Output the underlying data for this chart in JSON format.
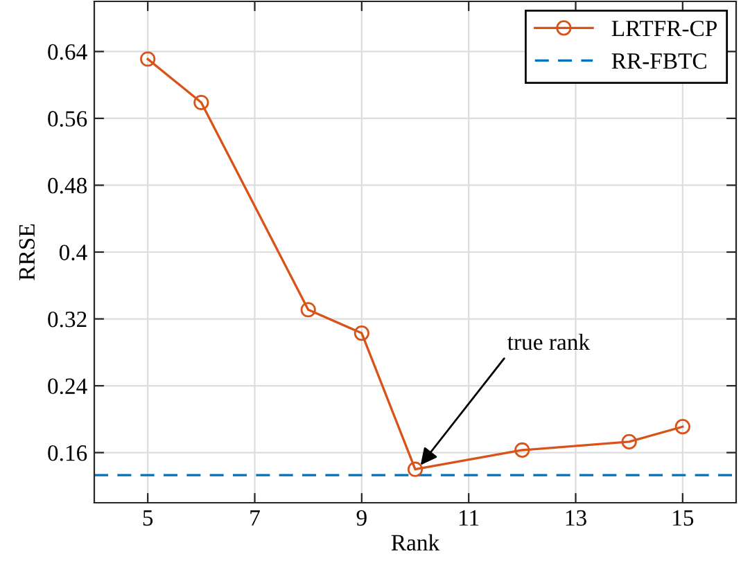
{
  "chart_data": {
    "type": "line",
    "xlabel": "Rank",
    "ylabel": "RRSE",
    "x": [
      5,
      6,
      8,
      9,
      10,
      12,
      14,
      15
    ],
    "series": [
      {
        "name": "LRTFR-CP",
        "color": "#d95319",
        "marker": "circle",
        "line_style": "solid",
        "values": [
          0.631,
          0.579,
          0.331,
          0.303,
          0.14,
          0.163,
          0.173,
          0.191
        ]
      }
    ],
    "ref_lines": [
      {
        "axis": "y",
        "value": 0.133,
        "label": "RR-FBTC",
        "color": "#0072bd",
        "line_style": "dashed"
      }
    ],
    "annotations": [
      {
        "text": "true rank",
        "x": 10.1,
        "y": 0.145
      }
    ],
    "xlim": [
      4,
      16
    ],
    "xticks": [
      5,
      7,
      9,
      11,
      13,
      15
    ],
    "ylim": [
      0.1,
      0.7
    ],
    "yticks": [
      0.16,
      0.24,
      0.32,
      0.4,
      0.48,
      0.56,
      0.64
    ],
    "grid": true,
    "legend": "top right"
  }
}
